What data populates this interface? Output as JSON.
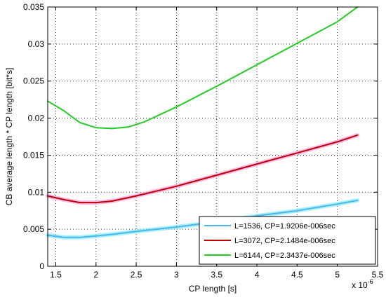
{
  "chart_data": {
    "type": "line",
    "title": "",
    "xlabel": "CP length [s]",
    "ylabel": "CB average length * CP length [bit*s]",
    "x_multiplier": "x 10",
    "x_multiplier_exp": "-6",
    "xlim": [
      1.4,
      5.5
    ],
    "ylim": [
      0,
      0.035
    ],
    "xticks": [
      "1.5",
      "2",
      "2.5",
      "3",
      "3.5",
      "4",
      "4.5",
      "5",
      "5.5"
    ],
    "yticks": [
      "0",
      "0.005",
      "0.01",
      "0.015",
      "0.02",
      "0.025",
      "0.03",
      "0.035"
    ],
    "grid": true,
    "legend_position": "bottom-right",
    "series": [
      {
        "name": "L=1536, CP=1.9206e-006sec",
        "color": "#4fb3ef",
        "halo": "#80ecf0",
        "x": [
          1.4,
          1.6,
          1.8,
          2.0,
          2.2,
          2.5,
          3.0,
          3.5,
          4.0,
          4.5,
          5.0,
          5.25
        ],
        "y": [
          0.0042,
          0.0039,
          0.0039,
          0.0041,
          0.0043,
          0.0047,
          0.0053,
          0.006,
          0.0068,
          0.0075,
          0.0084,
          0.0089
        ]
      },
      {
        "name": "L=3072, CP=2.1484e-006sec",
        "color": "#c00000",
        "halo": "#f3a0e0",
        "x": [
          1.4,
          1.6,
          1.8,
          2.0,
          2.2,
          2.5,
          3.0,
          3.5,
          4.0,
          4.5,
          5.0,
          5.25
        ],
        "y": [
          0.0095,
          0.009,
          0.0086,
          0.0086,
          0.0088,
          0.0095,
          0.0108,
          0.0123,
          0.0138,
          0.0153,
          0.0168,
          0.0177
        ]
      },
      {
        "name": "L=6144, CP=2.3437e-006sec",
        "color": "#22cc22",
        "halo": "#22cc22",
        "x": [
          1.4,
          1.6,
          1.8,
          2.0,
          2.2,
          2.4,
          2.6,
          3.0,
          3.5,
          4.0,
          4.5,
          5.0,
          5.25
        ],
        "y": [
          0.0223,
          0.021,
          0.0194,
          0.0187,
          0.0186,
          0.0188,
          0.0195,
          0.0215,
          0.0243,
          0.0272,
          0.0301,
          0.033,
          0.035
        ]
      }
    ]
  }
}
